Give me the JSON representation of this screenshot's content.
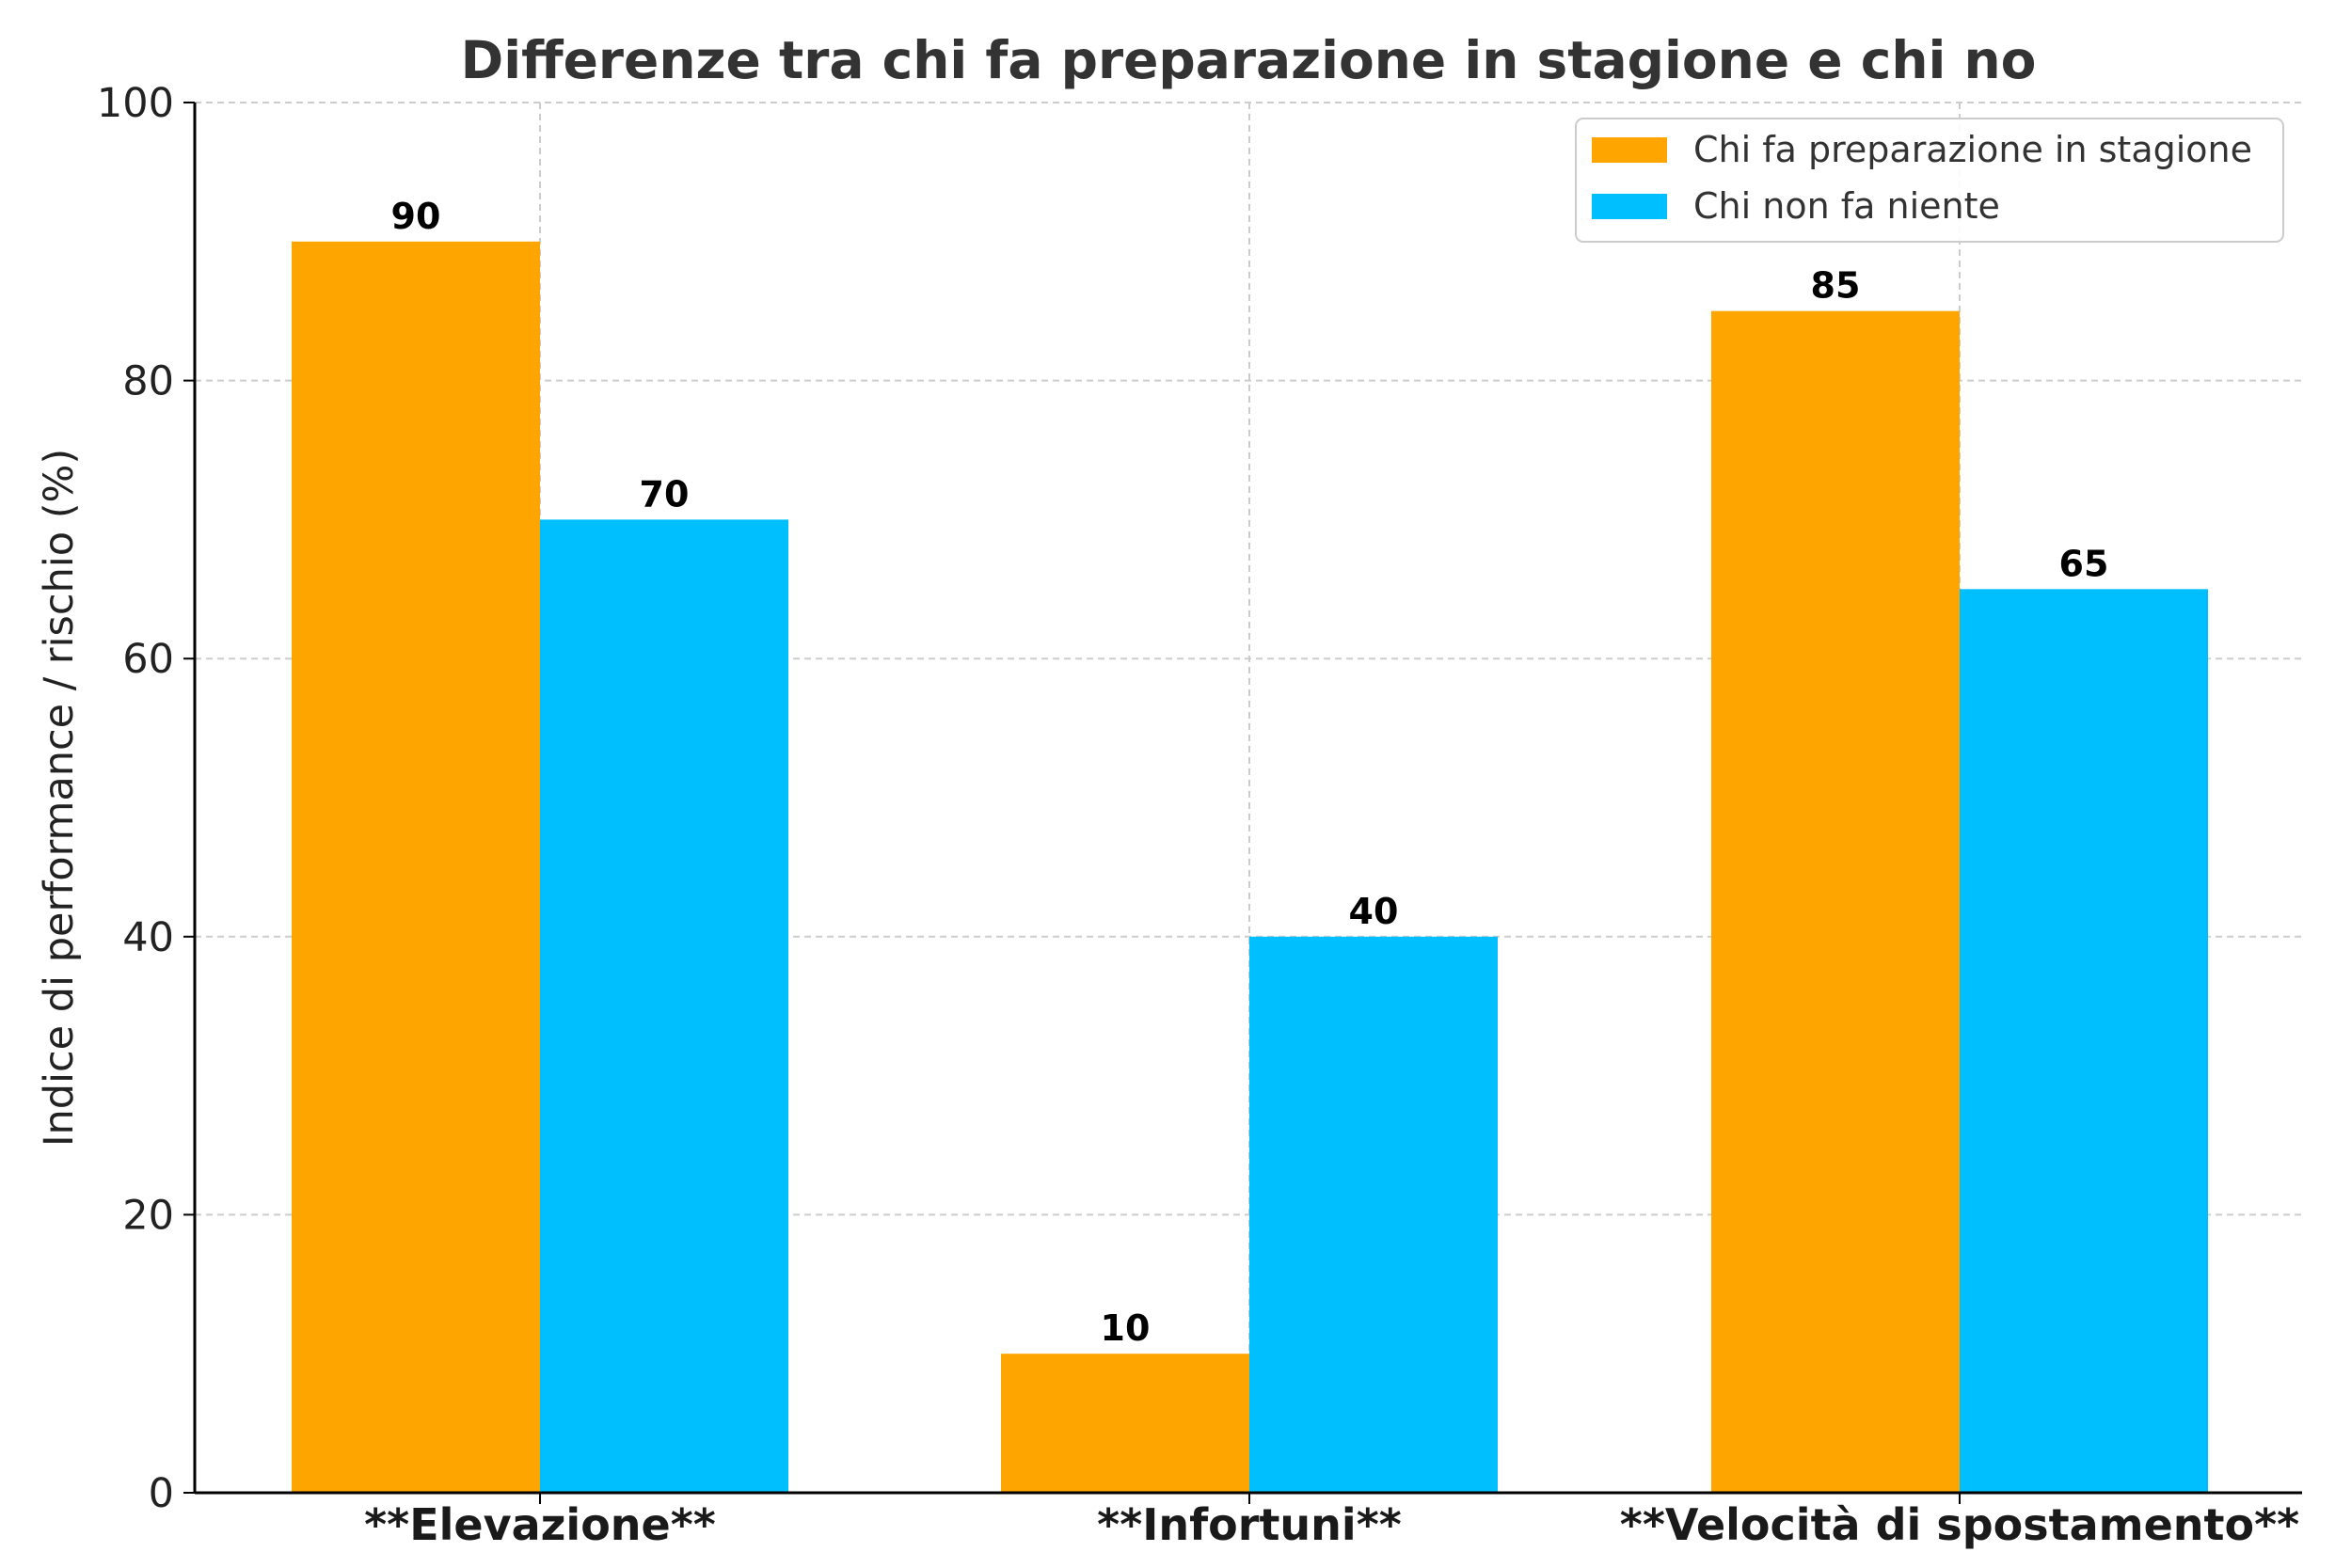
{
  "chart_data": {
    "type": "bar",
    "title": "Differenze tra chi fa preparazione in stagione e chi no",
    "xlabel": "",
    "ylabel": "Indice di performance / rischio (%)",
    "categories": [
      "**Elevazione**",
      "**Infortuni**",
      "**Velocità di spostamento**"
    ],
    "series": [
      {
        "name": "Chi fa preparazione in stagione",
        "values": [
          90,
          10,
          85
        ],
        "color": "#FFA500"
      },
      {
        "name": "Chi non fa niente",
        "values": [
          70,
          40,
          65
        ],
        "color": "#00BFFF"
      }
    ],
    "ylim": [
      0,
      100
    ],
    "yticks": [
      0,
      20,
      40,
      60,
      80,
      100
    ],
    "grid": true,
    "legend_position": "top-right"
  }
}
